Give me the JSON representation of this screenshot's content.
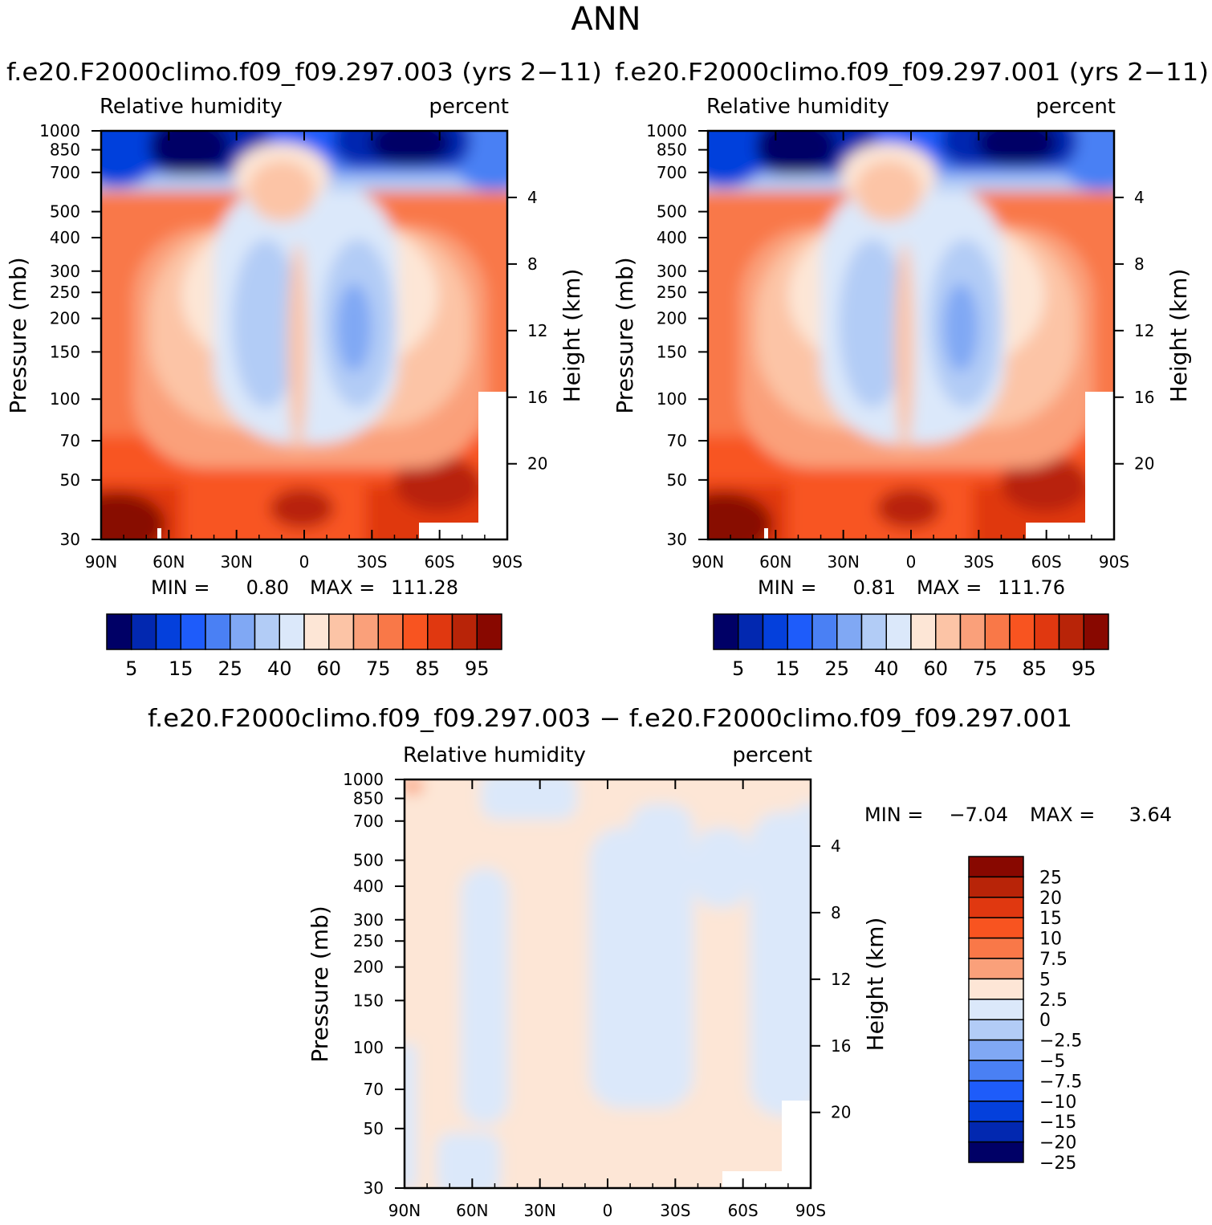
{
  "figure": {
    "title": "ANN",
    "diff_title": "f.e20.F2000climo.f09_f09.297.003 − f.e20.F2000climo.f09_f09.297.001"
  },
  "palettes": {
    "abs_colors": [
      "#000066",
      "#0228b0",
      "#0440dc",
      "#1e5cfa",
      "#4a80f4",
      "#80a8f4",
      "#b2ccf6",
      "#dbe8fa",
      "#fde6d6",
      "#fcc4a6",
      "#faa07a",
      "#f97848",
      "#f85420",
      "#e03810",
      "#b82408",
      "#880800"
    ],
    "abs_labels": [
      "5",
      "15",
      "25",
      "40",
      "60",
      "75",
      "85",
      "95"
    ],
    "diff_colors": [
      "#880800",
      "#b82408",
      "#e03810",
      "#f85420",
      "#f97848",
      "#faa07a",
      "#fde6d6",
      "#dbe8fa",
      "#b2ccf6",
      "#80a8f4",
      "#4a80f4",
      "#1e5cfa",
      "#0440dc",
      "#0228b0",
      "#000066"
    ],
    "diff_labels": [
      "25",
      "20",
      "15",
      "10",
      "7.5",
      "5",
      "2.5",
      "0",
      "−2.5",
      "−5",
      "−7.5",
      "−10",
      "−15",
      "−20",
      "−25"
    ]
  },
  "axes": {
    "pressure_ticks": [
      "30",
      "50",
      "70",
      "100",
      "150",
      "200",
      "250",
      "300",
      "400",
      "500",
      "700",
      "850",
      "1000"
    ],
    "height_ticks": [
      "20",
      "16",
      "12",
      "8",
      "4"
    ],
    "lat_ticks": [
      "90N",
      "60N",
      "30N",
      "0",
      "30S",
      "60S",
      "90S"
    ],
    "ylabel": "Pressure (mb)",
    "ylabel2": "Height (km)",
    "top_left": "Relative humidity",
    "top_right": "percent"
  },
  "chart_data": [
    {
      "type": "heatmap",
      "title": "f.e20.F2000climo.f09_f09.297.003 (yrs 2−11)",
      "variable": "Relative humidity",
      "units": "percent",
      "xlabel": "",
      "ylabel": "Pressure (mb)",
      "y2label": "Height (km)",
      "x_range": [
        "90N",
        "90S"
      ],
      "y_range_mb": [
        1000,
        30
      ],
      "levels": [
        5,
        10,
        15,
        20,
        25,
        30,
        40,
        50,
        60,
        70,
        75,
        80,
        85,
        90,
        95
      ],
      "min_label": "MIN =",
      "min": "0.80",
      "max_label": "MAX =",
      "max": "111.28"
    },
    {
      "type": "heatmap",
      "title": "f.e20.F2000climo.f09_f09.297.001 (yrs 2−11)",
      "variable": "Relative humidity",
      "units": "percent",
      "xlabel": "",
      "ylabel": "Pressure (mb)",
      "y2label": "Height (km)",
      "x_range": [
        "90N",
        "90S"
      ],
      "y_range_mb": [
        1000,
        30
      ],
      "levels": [
        5,
        10,
        15,
        20,
        25,
        30,
        40,
        50,
        60,
        70,
        75,
        80,
        85,
        90,
        95
      ],
      "min_label": "MIN =",
      "min": "0.81",
      "max_label": "MAX =",
      "max": "111.76"
    },
    {
      "type": "heatmap",
      "title": "f.e20.F2000climo.f09_f09.297.003 − f.e20.F2000climo.f09_f09.297.001",
      "variable": "Relative humidity",
      "units": "percent",
      "xlabel": "",
      "ylabel": "Pressure (mb)",
      "y2label": "Height (km)",
      "x_range": [
        "90N",
        "90S"
      ],
      "y_range_mb": [
        1000,
        30
      ],
      "levels": [
        -25,
        -20,
        -15,
        -10,
        -7.5,
        -5,
        -2.5,
        0,
        2.5,
        5,
        7.5,
        10,
        15,
        20,
        25
      ],
      "min_label": "MIN =",
      "min": "−7.04",
      "max_label": "MAX =",
      "max": "3.64"
    }
  ]
}
